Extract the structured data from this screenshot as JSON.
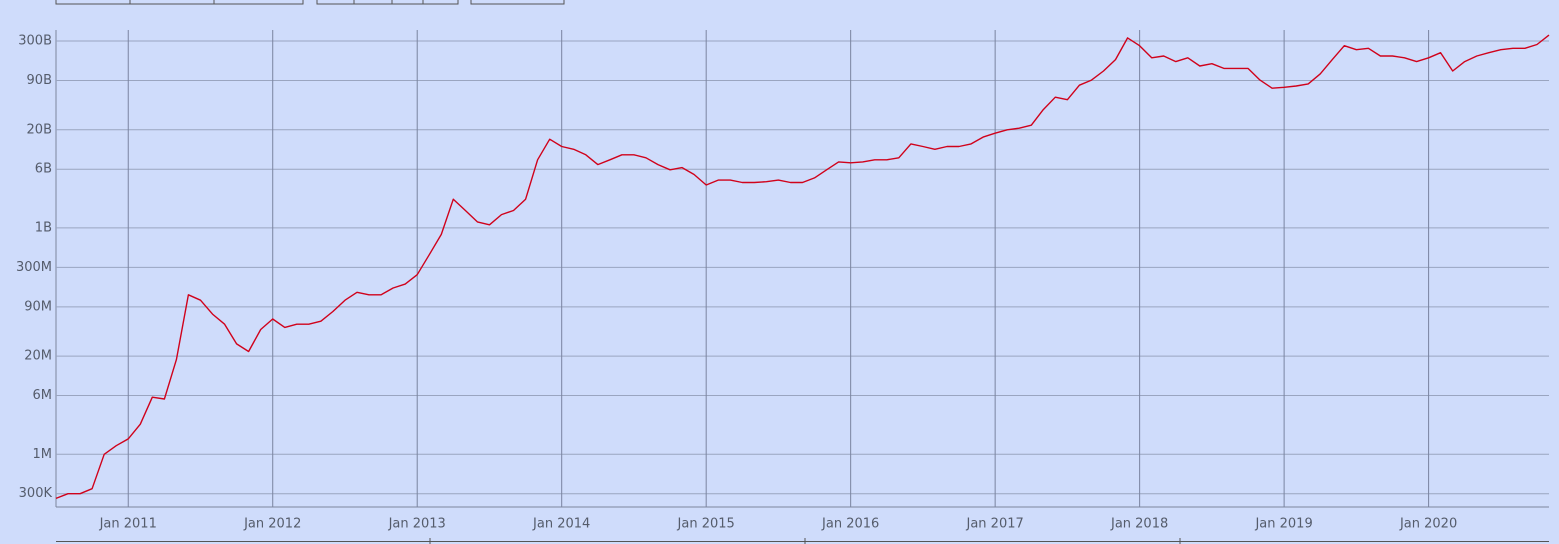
{
  "chart_data": {
    "type": "line",
    "log_y": true,
    "grid": true,
    "color": "#d0021b",
    "xlim": [
      "2010-07",
      "2020-11"
    ],
    "xticks": [
      {
        "value": "2011-01",
        "label": "Jan 2011"
      },
      {
        "value": "2012-01",
        "label": "Jan 2012"
      },
      {
        "value": "2013-01",
        "label": "Jan 2013"
      },
      {
        "value": "2014-01",
        "label": "Jan 2014"
      },
      {
        "value": "2015-01",
        "label": "Jan 2015"
      },
      {
        "value": "2016-01",
        "label": "Jan 2016"
      },
      {
        "value": "2017-01",
        "label": "Jan 2017"
      },
      {
        "value": "2018-01",
        "label": "Jan 2018"
      },
      {
        "value": "2019-01",
        "label": "Jan 2019"
      },
      {
        "value": "2020-01",
        "label": "Jan 2020"
      }
    ],
    "ylim": [
      200000,
      420000000000
    ],
    "yticks": [
      {
        "value": 300000,
        "label": "300K"
      },
      {
        "value": 1000000,
        "label": "1M"
      },
      {
        "value": 6000000,
        "label": "6M"
      },
      {
        "value": 20000000,
        "label": "20M"
      },
      {
        "value": 90000000,
        "label": "90M"
      },
      {
        "value": 300000000,
        "label": "300M"
      },
      {
        "value": 1000000000,
        "label": "1B"
      },
      {
        "value": 6000000000,
        "label": "6B"
      },
      {
        "value": 20000000000,
        "label": "20B"
      },
      {
        "value": 90000000000,
        "label": "90B"
      },
      {
        "value": 300000000000,
        "label": "300B"
      }
    ],
    "x": [
      "2010-07",
      "2010-08",
      "2010-09",
      "2010-10",
      "2010-11",
      "2010-12",
      "2011-01",
      "2011-02",
      "2011-03",
      "2011-04",
      "2011-05",
      "2011-06",
      "2011-07",
      "2011-08",
      "2011-09",
      "2011-10",
      "2011-11",
      "2011-12",
      "2012-01",
      "2012-02",
      "2012-03",
      "2012-04",
      "2012-05",
      "2012-06",
      "2012-07",
      "2012-08",
      "2012-09",
      "2012-10",
      "2012-11",
      "2012-12",
      "2013-01",
      "2013-02",
      "2013-03",
      "2013-04",
      "2013-05",
      "2013-06",
      "2013-07",
      "2013-08",
      "2013-09",
      "2013-10",
      "2013-11",
      "2013-12",
      "2014-01",
      "2014-02",
      "2014-03",
      "2014-04",
      "2014-05",
      "2014-06",
      "2014-07",
      "2014-08",
      "2014-09",
      "2014-10",
      "2014-11",
      "2014-12",
      "2015-01",
      "2015-02",
      "2015-03",
      "2015-04",
      "2015-05",
      "2015-06",
      "2015-07",
      "2015-08",
      "2015-09",
      "2015-10",
      "2015-11",
      "2015-12",
      "2016-01",
      "2016-02",
      "2016-03",
      "2016-04",
      "2016-05",
      "2016-06",
      "2016-07",
      "2016-08",
      "2016-09",
      "2016-10",
      "2016-11",
      "2016-12",
      "2017-01",
      "2017-02",
      "2017-03",
      "2017-04",
      "2017-05",
      "2017-06",
      "2017-07",
      "2017-08",
      "2017-09",
      "2017-10",
      "2017-11",
      "2017-12",
      "2018-01",
      "2018-02",
      "2018-03",
      "2018-04",
      "2018-05",
      "2018-06",
      "2018-07",
      "2018-08",
      "2018-09",
      "2018-10",
      "2018-11",
      "2018-12",
      "2019-01",
      "2019-02",
      "2019-03",
      "2019-04",
      "2019-05",
      "2019-06",
      "2019-07",
      "2019-08",
      "2019-09",
      "2019-10",
      "2019-11",
      "2019-12",
      "2020-01",
      "2020-02",
      "2020-03",
      "2020-04",
      "2020-05",
      "2020-06",
      "2020-07",
      "2020-08",
      "2020-09",
      "2020-10",
      "2020-11"
    ],
    "values": [
      260000,
      300000,
      300000,
      350000,
      1000000,
      1300000,
      1600000,
      2500000,
      5700000,
      5400000,
      18000000,
      130000000,
      110000000,
      72000000,
      53000000,
      29000000,
      23000000,
      45000000,
      62000000,
      48000000,
      53000000,
      53000000,
      58000000,
      78000000,
      110000000,
      140000000,
      130000000,
      130000000,
      160000000,
      180000000,
      240000000,
      440000000,
      820000000,
      2400000000,
      1700000000,
      1200000000,
      1100000000,
      1500000000,
      1700000000,
      2400000000,
      8000000000,
      15000000000,
      12000000000,
      11000000000,
      9300000000,
      6900000000,
      8000000000,
      9300000000,
      9300000000,
      8500000000,
      6900000000,
      5900000000,
      6300000000,
      5100000000,
      3700000000,
      4300000000,
      4300000000,
      4000000000,
      4000000000,
      4100000000,
      4300000000,
      4000000000,
      4000000000,
      4600000000,
      5900000000,
      7500000000,
      7300000000,
      7500000000,
      8000000000,
      8000000000,
      8500000000,
      13000000000,
      12000000000,
      11000000000,
      12000000000,
      12000000000,
      13000000000,
      16000000000,
      18000000000,
      20000000000,
      21000000000,
      23000000000,
      37000000000,
      54000000000,
      50000000000,
      78000000000,
      91000000000,
      120000000000,
      170000000000,
      330000000000,
      260000000000,
      180000000000,
      190000000000,
      160000000000,
      180000000000,
      140000000000,
      150000000000,
      130000000000,
      130000000000,
      130000000000,
      91000000000,
      71000000000,
      73000000000,
      76000000000,
      81000000000,
      110000000000,
      170000000000,
      260000000000,
      230000000000,
      240000000000,
      190000000000,
      190000000000,
      180000000000,
      160000000000,
      180000000000,
      210000000000,
      120000000000,
      160000000000,
      190000000000,
      210000000000,
      230000000000,
      240000000000,
      240000000000,
      270000000000,
      360000000000
    ]
  }
}
